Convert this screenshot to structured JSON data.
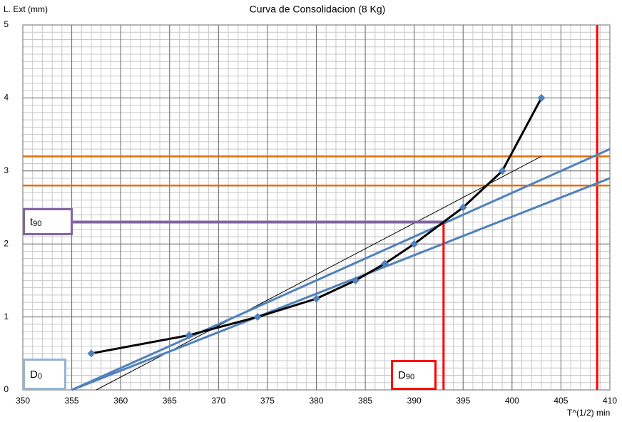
{
  "chart_data": {
    "type": "line",
    "title": "Curva de Consolidacion (8 Kg)",
    "y_label": "L. Ext (mm)",
    "x_label": "T^(1/2) min",
    "xlim": [
      350,
      410
    ],
    "ylim": [
      0,
      5
    ],
    "xticks": [
      350,
      355,
      360,
      365,
      370,
      375,
      380,
      385,
      390,
      395,
      400,
      405,
      410
    ],
    "yticks": [
      0,
      1,
      2,
      3,
      4,
      5
    ],
    "grid": true,
    "minor_grid": {
      "x": 1,
      "y": 0.1
    },
    "series": [
      {
        "color": "#ff0000",
        "line_width": 3,
        "x": [
          408.7,
          408.7
        ],
        "values": [
          0,
          5
        ]
      },
      {
        "color": "#e46c0a",
        "line_width": 2.5,
        "x": [
          350,
          410
        ],
        "values": [
          3.2,
          3.2
        ]
      },
      {
        "color": "#e46c0a",
        "line_width": 2.5,
        "x": [
          350,
          410
        ],
        "values": [
          2.8,
          2.8
        ]
      },
      {
        "color": "#000000",
        "line_width": 1,
        "x": [
          357.5,
          403
        ],
        "values": [
          0,
          3.2
        ]
      },
      {
        "color": "#4f81bd",
        "line_width": 3,
        "x": [
          355,
          410
        ],
        "values": [
          0,
          3.3
        ]
      },
      {
        "color": "#4f81bd",
        "line_width": 3,
        "x": [
          355,
          410
        ],
        "values": [
          0,
          2.9
        ]
      },
      {
        "color": "#8064a2",
        "line_width": 4,
        "x": [
          350,
          393
        ],
        "values": [
          2.3,
          2.3
        ]
      },
      {
        "color": "#ff0000",
        "line_width": 3,
        "x": [
          393,
          393
        ],
        "values": [
          0,
          2.3
        ]
      },
      {
        "color": "#000000",
        "line_width": 3,
        "marker_color": "#4f81bd",
        "markers": true,
        "x": [
          357,
          367,
          374,
          380,
          384,
          387,
          390,
          395,
          399,
          403
        ],
        "values": [
          0.5,
          0.75,
          1.0,
          1.25,
          1.5,
          1.73,
          2.0,
          2.5,
          3.0,
          4.0
        ]
      }
    ],
    "annotations": [
      {
        "base": "t",
        "sub": "90",
        "color": "#8064a2"
      },
      {
        "base": "D",
        "sub": "0",
        "color": "#95b3d7"
      },
      {
        "base": "D",
        "sub": "90",
        "color": "#ff0000"
      }
    ]
  }
}
